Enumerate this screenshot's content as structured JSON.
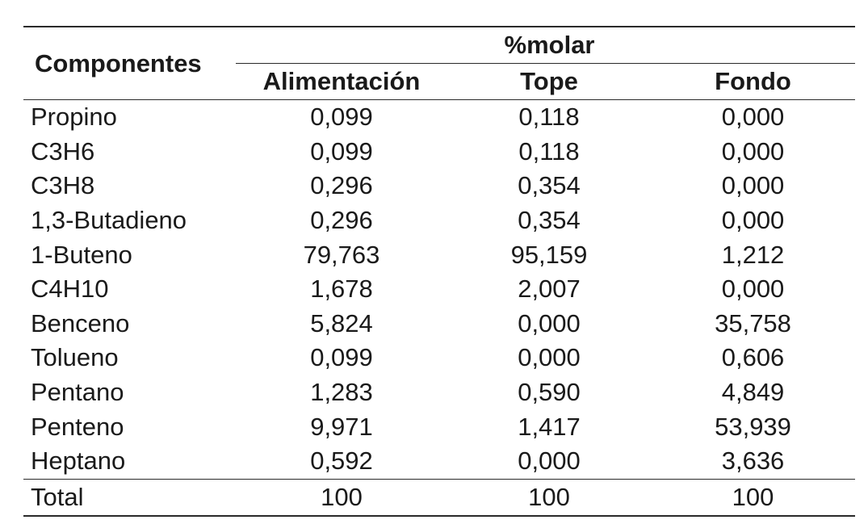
{
  "table": {
    "components_header": "Componentes",
    "group_header": "%molar",
    "columns": [
      "Alimentación",
      "Tope",
      "Fondo"
    ],
    "rows": [
      {
        "name": "Propino",
        "values": [
          "0,099",
          "0,118",
          "0,000"
        ]
      },
      {
        "name": "C3H6",
        "values": [
          "0,099",
          "0,118",
          "0,000"
        ]
      },
      {
        "name": "C3H8",
        "values": [
          "0,296",
          "0,354",
          "0,000"
        ]
      },
      {
        "name": "1,3-Butadieno",
        "values": [
          "0,296",
          "0,354",
          "0,000"
        ]
      },
      {
        "name": "1-Buteno",
        "values": [
          "79,763",
          "95,159",
          "1,212"
        ]
      },
      {
        "name": "C4H10",
        "values": [
          "1,678",
          "2,007",
          "0,000"
        ]
      },
      {
        "name": "Benceno",
        "values": [
          "5,824",
          "0,000",
          "35,758"
        ]
      },
      {
        "name": "Tolueno",
        "values": [
          "0,099",
          "0,000",
          "0,606"
        ]
      },
      {
        "name": "Pentano",
        "values": [
          "1,283",
          "0,590",
          "4,849"
        ]
      },
      {
        "name": "Penteno",
        "values": [
          "9,971",
          "1,417",
          "53,939"
        ]
      },
      {
        "name": "Heptano",
        "values": [
          "0,592",
          "0,000",
          "3,636"
        ]
      }
    ],
    "total": {
      "name": "Total",
      "values": [
        "100",
        "100",
        "100"
      ]
    }
  }
}
